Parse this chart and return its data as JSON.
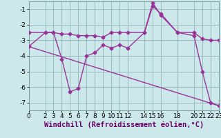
{
  "xlabel": "Windchill (Refroidissement éolien,°C)",
  "bg_color": "#cce8ea",
  "line_color": "#993399",
  "grid_color": "#99bbbb",
  "xlim": [
    0,
    23
  ],
  "ylim": [
    -7.5,
    -0.5
  ],
  "yticks": [
    -7,
    -6,
    -5,
    -4,
    -3,
    -2,
    -1
  ],
  "xticks": [
    0,
    2,
    3,
    4,
    5,
    6,
    7,
    8,
    9,
    10,
    11,
    12,
    14,
    15,
    16,
    18,
    20,
    21,
    22,
    23
  ],
  "line1_x": [
    0,
    2,
    3,
    4,
    5,
    6,
    7,
    8,
    9,
    10,
    11,
    12,
    14,
    15,
    16,
    18,
    20,
    21,
    22,
    23
  ],
  "line1_y": [
    -3.4,
    -2.5,
    -2.5,
    -4.2,
    -6.3,
    -6.1,
    -4.0,
    -3.8,
    -3.3,
    -3.5,
    -3.3,
    -3.5,
    -2.5,
    -0.6,
    -1.4,
    -2.5,
    -2.7,
    -5.0,
    -7.0,
    -7.2
  ],
  "line2_x": [
    0,
    2,
    3,
    4,
    5,
    6,
    7,
    8,
    9,
    10,
    11,
    12,
    14,
    15,
    16,
    18,
    20,
    21,
    22,
    23
  ],
  "line2_y": [
    -2.5,
    -2.5,
    -2.5,
    -2.6,
    -2.6,
    -2.7,
    -2.7,
    -2.7,
    -2.8,
    -2.5,
    -2.5,
    -2.5,
    -2.5,
    -0.8,
    -1.3,
    -2.5,
    -2.5,
    -2.9,
    -3.0,
    -3.0
  ],
  "line3_x": [
    0,
    23
  ],
  "line3_y": [
    -3.4,
    -7.2
  ],
  "xlabel_fontsize": 7.5,
  "tick_fontsize": 6.5,
  "marker": "D",
  "markersize": 2.5,
  "linewidth": 1.0
}
